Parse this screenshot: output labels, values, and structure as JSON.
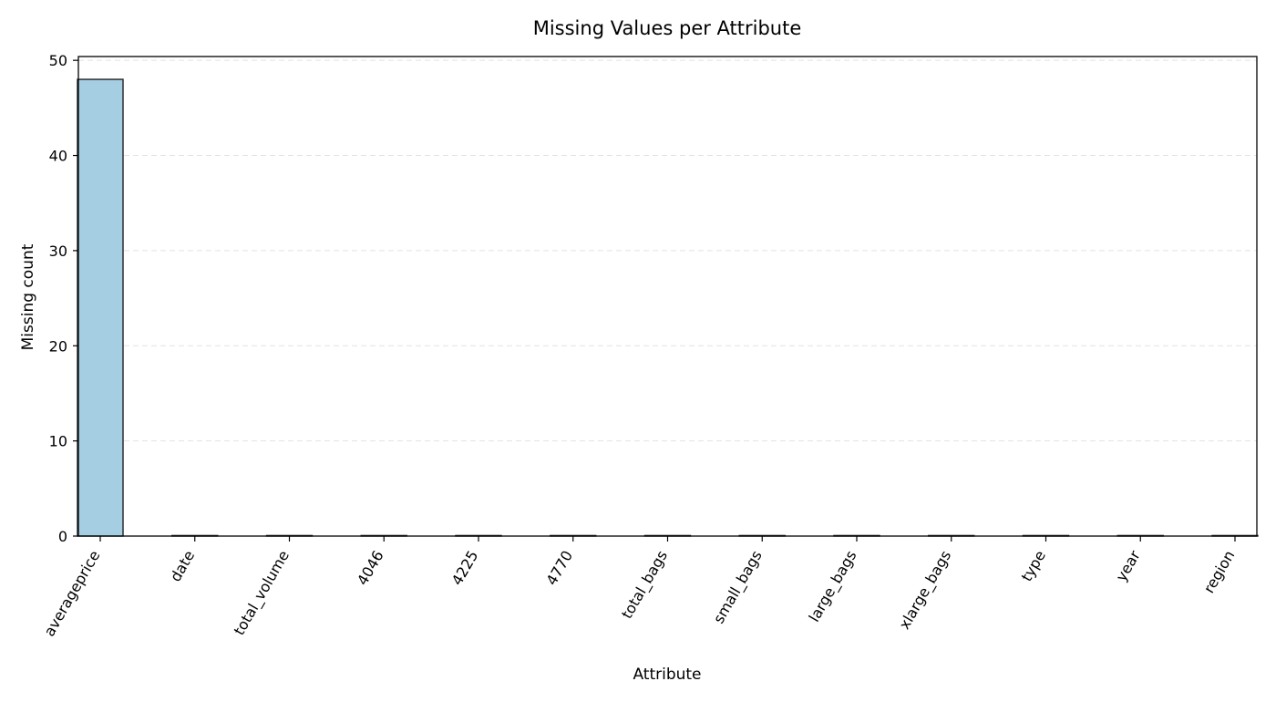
{
  "chart_data": {
    "type": "bar",
    "title": "Missing Values per Attribute",
    "xlabel": "Attribute",
    "ylabel": "Missing count",
    "categories": [
      "averageprice",
      "date",
      "total_volume",
      "4046",
      "4225",
      "4770",
      "total_bags",
      "small_bags",
      "large_bags",
      "xlarge_bags",
      "type",
      "year",
      "region"
    ],
    "values": [
      48,
      0,
      0,
      0,
      0,
      0,
      0,
      0,
      0,
      0,
      0,
      0,
      0
    ],
    "ylim": [
      0,
      50.4
    ],
    "yticks": [
      0,
      10,
      20,
      30,
      40,
      50
    ],
    "grid": "y-dashed",
    "legend": "none",
    "bar_color": "#a6cee3",
    "edge_color": "#222222"
  }
}
